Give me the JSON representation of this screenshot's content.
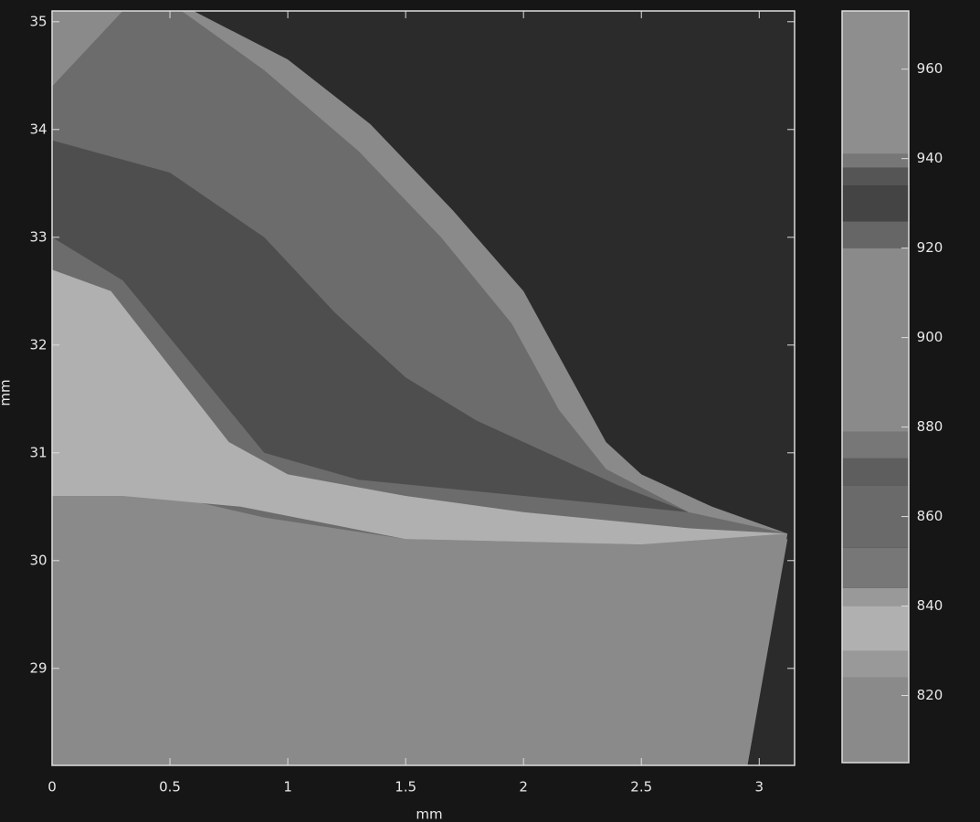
{
  "chart_data": {
    "type": "contour",
    "xlabel": "mm",
    "ylabel": "mm",
    "xlim": [
      0,
      3.15
    ],
    "ylim": [
      28.1,
      35.1
    ],
    "xticks": [
      0,
      0.5,
      1,
      1.5,
      2,
      2.5,
      3
    ],
    "yticks": [
      29,
      30,
      31,
      32,
      33,
      34,
      35
    ],
    "background": "#2b2b2b",
    "regions": [
      {
        "level": 900,
        "color": "#8a8a8a",
        "x": [
          0,
          0.6,
          1.0,
          1.35,
          1.7,
          2.0,
          2.2,
          2.35,
          2.5,
          2.8,
          3.12,
          2.95,
          0
        ],
        "y": [
          35.1,
          35.1,
          34.65,
          34.05,
          33.25,
          32.5,
          31.7,
          31.1,
          30.8,
          30.5,
          30.25,
          28.1,
          28.1
        ]
      },
      {
        "level": 870,
        "color": "#6c6c6c",
        "x": [
          0,
          0.3,
          0.55,
          0.9,
          1.3,
          1.65,
          1.95,
          2.15,
          2.35,
          2.7,
          3.12,
          2.5,
          1.5,
          0.9,
          0.5,
          0
        ],
        "y": [
          34.4,
          35.1,
          35.1,
          34.55,
          33.8,
          33.0,
          32.2,
          31.4,
          30.85,
          30.45,
          30.25,
          30.15,
          30.2,
          30.4,
          30.6,
          30.8
        ]
      },
      {
        "level": 930,
        "color": "#4e4e4e",
        "x": [
          0,
          0.5,
          0.9,
          1.2,
          1.5,
          1.8,
          2.1,
          2.4,
          2.7,
          2.0,
          1.3,
          0.9,
          0.6,
          0.3,
          0
        ],
        "y": [
          33.9,
          33.6,
          33.0,
          32.3,
          31.7,
          31.3,
          31.0,
          30.7,
          30.45,
          30.6,
          30.75,
          31.0,
          31.8,
          32.6,
          33.0
        ]
      },
      {
        "level": 835,
        "color": "#b0b0b0",
        "x": [
          0,
          0.25,
          0.5,
          0.75,
          1.0,
          1.5,
          2.0,
          2.7,
          3.12,
          2.5,
          1.5,
          0.8,
          0.3,
          0
        ],
        "y": [
          32.7,
          32.5,
          31.8,
          31.1,
          30.8,
          30.6,
          30.45,
          30.3,
          30.25,
          30.15,
          30.2,
          30.5,
          30.6,
          30.6
        ]
      },
      {
        "level": 880,
        "color": "#8a8a8a",
        "x": [
          0,
          0.5,
          1.0,
          1.5,
          2.5,
          3.12,
          2.95,
          0
        ],
        "y": [
          30.6,
          30.55,
          30.35,
          30.2,
          30.1,
          30.2,
          28.1,
          28.1
        ]
      }
    ],
    "colorbar": {
      "clim": [
        805,
        973
      ],
      "ticks": [
        820,
        840,
        860,
        880,
        900,
        920,
        940,
        960
      ],
      "bounds": [
        805,
        824,
        830,
        840,
        844,
        853,
        867,
        873,
        879,
        920,
        926,
        934,
        938,
        941,
        973
      ],
      "colors": [
        "#8a8a8a",
        "#999999",
        "#b0b0b0",
        "#999999",
        "#777777",
        "#6a6a6a",
        "#5e5e5e",
        "#777777",
        "#8a8a8a",
        "#666666",
        "#444444",
        "#555555",
        "#777777",
        "#8e8e8e"
      ]
    }
  }
}
